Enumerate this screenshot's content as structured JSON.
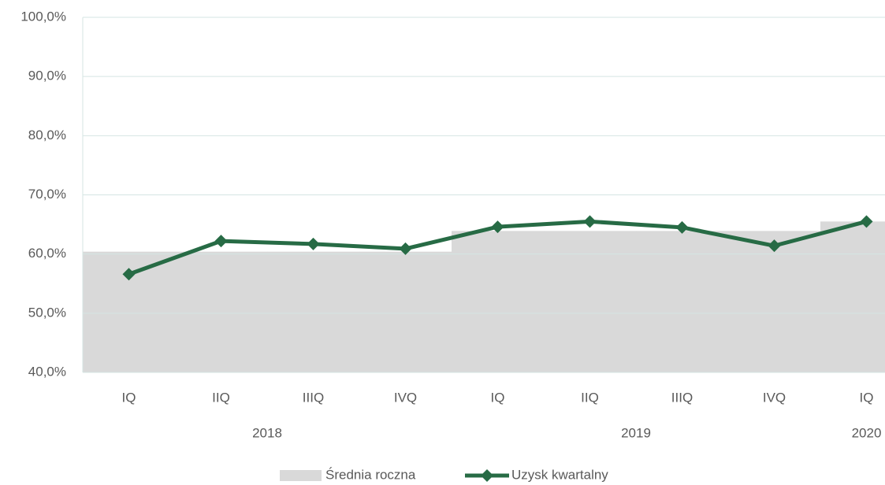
{
  "chart_data": {
    "type": "bar_line",
    "categories": [
      "IQ",
      "IIQ",
      "IIIQ",
      "IVQ",
      "IQ",
      "IIQ",
      "IIIQ",
      "IVQ",
      "IQ"
    ],
    "years": [
      "2018",
      "2018",
      "2018",
      "2018",
      "2019",
      "2019",
      "2019",
      "2019",
      "2020"
    ],
    "series": [
      {
        "name": "Średnia roczna",
        "type": "bar",
        "color": "#d9d9d9",
        "values": [
          60.4,
          60.4,
          60.4,
          60.4,
          63.9,
          63.9,
          63.9,
          63.9,
          65.5
        ]
      },
      {
        "name": "Uzysk kwartalny",
        "type": "line",
        "color": "#276b45",
        "values": [
          56.6,
          62.2,
          61.7,
          60.9,
          64.6,
          65.5,
          64.5,
          61.4,
          65.5
        ]
      }
    ],
    "ylim": [
      40,
      100
    ],
    "yticks": [
      {
        "value": 40,
        "label": "40,0%"
      },
      {
        "value": 50,
        "label": "50,0%"
      },
      {
        "value": 60,
        "label": "60,0%"
      },
      {
        "value": 70,
        "label": "70,0%"
      },
      {
        "value": 80,
        "label": "80,0%"
      },
      {
        "value": 90,
        "label": "90,0%"
      },
      {
        "value": 100,
        "label": "100,0%"
      }
    ],
    "grid": true,
    "legend": "bottom"
  }
}
